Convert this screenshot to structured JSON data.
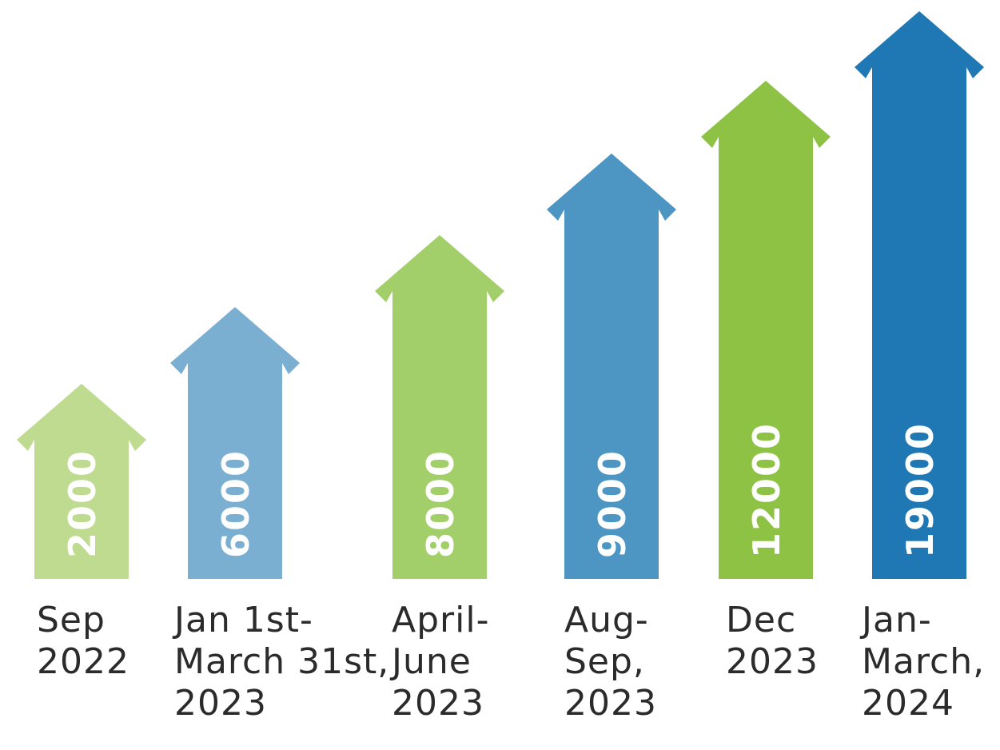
{
  "chart_data": {
    "type": "bar",
    "style": "upward-arrows",
    "title": "",
    "xlabel": "",
    "ylabel": "",
    "categories": [
      [
        "Sep",
        "2022"
      ],
      [
        "Jan 1st-",
        "March 31st,",
        "2023"
      ],
      [
        "April-",
        "June",
        "2023"
      ],
      [
        "Aug-",
        "Sep,",
        "2023"
      ],
      [
        "Dec",
        "2023"
      ],
      [
        "Jan-",
        "March,",
        "2024"
      ]
    ],
    "values": [
      2000,
      6000,
      8000,
      9000,
      12000,
      19000
    ],
    "value_labels": [
      "2000",
      "6000",
      "8000",
      "9000",
      "12000",
      "19000"
    ],
    "colors": [
      "#bedb8f",
      "#7aafd2",
      "#a3cf6b",
      "#4d95c3",
      "#8dc245",
      "#1f78b4"
    ]
  }
}
